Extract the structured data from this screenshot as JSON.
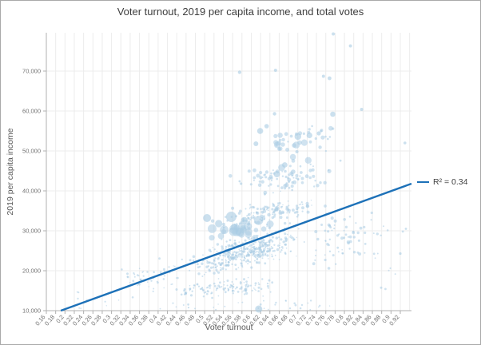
{
  "chart_data": {
    "type": "scatter",
    "title": "Voter turnout, 2019 per capita income, and total votes",
    "xlabel": "Voter turnout",
    "ylabel": "2019 per capita income",
    "legend_label": "R² = 0.34",
    "x_domain": [
      0.16,
      0.944
    ],
    "y_domain": [
      10000,
      79600
    ],
    "x_ticks": [
      "0.16",
      "0.18",
      "0.2",
      "0.22",
      "0.24",
      "0.26",
      "0.28",
      "0.3",
      "0.32",
      "0.34",
      "0.36",
      "0.38",
      "0.4",
      "0.42",
      "0.44",
      "0.46",
      "0.48",
      "0.5",
      "0.52",
      "0.54",
      "0.56",
      "0.58",
      "0.6",
      "0.62",
      "0.64",
      "0.66",
      "0.68",
      "0.7",
      "0.72",
      "0.74",
      "0.76",
      "0.78",
      "0.8",
      "0.82",
      "0.84",
      "0.86",
      "0.88",
      "0.9",
      "0.92"
    ],
    "extra_gridlines": [
      "0.94"
    ],
    "y_tick_values": [
      10000,
      20000,
      30000,
      40000,
      50000,
      60000,
      70000
    ],
    "y_tick_labels": [
      "10,000",
      "20,000",
      "30,000",
      "40,000",
      "50,000",
      "60,000",
      "70,000"
    ],
    "grid": true,
    "legend_position": "right",
    "trendline": {
      "x1": 0.191,
      "y1": 10000,
      "x2": 0.944,
      "y2": 41800,
      "r_squared": 0.34
    },
    "colors": {
      "point": "#a9cce3",
      "trend": "#1d71b8",
      "grid": "#ececec",
      "axis": "#b0b0b0",
      "tick_label": "#707070",
      "title": "#3d3d3d",
      "axis_title": "#595959",
      "legend_text": "#404040",
      "border": "#a9a9a9"
    },
    "seed": 1337,
    "highlight_points": [
      [
        0.776,
        79300,
        2
      ],
      [
        0.813,
        76300,
        2
      ],
      [
        0.575,
        69700,
        2.2
      ],
      [
        0.652,
        70200,
        2
      ],
      [
        0.755,
        68700,
        2
      ],
      [
        0.768,
        68200,
        2.4
      ],
      [
        0.65,
        59300,
        2.2
      ],
      [
        0.775,
        59200,
        3.3
      ],
      [
        0.837,
        60400,
        2
      ],
      [
        0.7,
        53600,
        4.2
      ],
      [
        0.725,
        53900,
        3.6
      ],
      [
        0.745,
        54400,
        2.6
      ],
      [
        0.619,
        55000,
        3.8
      ],
      [
        0.633,
        56200,
        2.8
      ],
      [
        0.61,
        51800,
        3
      ],
      [
        0.66,
        50500,
        2.4
      ],
      [
        0.698,
        49800,
        2
      ],
      [
        0.93,
        52000,
        1.8
      ],
      [
        0.505,
        33200,
        5
      ],
      [
        0.557,
        33500,
        6.5
      ],
      [
        0.53,
        31800,
        4.6
      ],
      [
        0.585,
        32600,
        4.2
      ],
      [
        0.616,
        10400,
        4.5
      ],
      [
        0.575,
        42400,
        1.4
      ],
      [
        0.578,
        41800,
        1.6
      ],
      [
        0.92,
        24300,
        1.6
      ],
      [
        0.932,
        30500,
        1.4
      ],
      [
        0.672,
        46500,
        3.4
      ],
      [
        0.655,
        44200,
        4
      ],
      [
        0.69,
        44800,
        2.8
      ]
    ],
    "point_clusters": [
      {
        "n": 400,
        "x": [
          0.44,
          0.745
        ],
        "y": [
          15500,
          34500
        ],
        "r": [
          0.7,
          1.8
        ],
        "dist": "gauss",
        "corr": 0.45
      },
      {
        "n": 150,
        "x": [
          0.5,
          0.78
        ],
        "y": [
          28000,
          41000
        ],
        "r": [
          0.7,
          2.2
        ],
        "dist": "gauss",
        "corr": 0.35
      },
      {
        "n": 130,
        "x": [
          0.4,
          0.7
        ],
        "y": [
          12000,
          19500
        ],
        "r": [
          0.7,
          1.6
        ],
        "dist": "gauss",
        "corr": 0.2
      },
      {
        "n": 50,
        "x": [
          0.3,
          0.47
        ],
        "y": [
          10800,
          26000
        ],
        "r": [
          0.7,
          1.5
        ],
        "dist": "gauss",
        "corr": 0.3
      },
      {
        "n": 9,
        "x": [
          0.21,
          0.33
        ],
        "y": [
          10200,
          15500
        ],
        "r": [
          0.7,
          1.2
        ],
        "dist": "uniform",
        "corr": 0
      },
      {
        "n": 65,
        "x": [
          0.71,
          0.88
        ],
        "y": [
          16500,
          38500
        ],
        "r": [
          0.8,
          2.0
        ],
        "dist": "gauss",
        "corr": 0.2
      },
      {
        "n": 14,
        "x": [
          0.86,
          0.94
        ],
        "y": [
          15000,
          32000
        ],
        "r": [
          0.8,
          1.7
        ],
        "dist": "uniform",
        "corr": 0
      },
      {
        "n": 80,
        "x": [
          0.55,
          0.83
        ],
        "y": [
          37000,
          50000
        ],
        "r": [
          0.9,
          2.6
        ],
        "dist": "gauss",
        "corr": 0.25
      },
      {
        "n": 30,
        "x": [
          0.58,
          0.84
        ],
        "y": [
          47000,
          60000
        ],
        "r": [
          1.2,
          3.0
        ],
        "dist": "gauss",
        "corr": 0.2
      },
      {
        "n": 24,
        "x": [
          0.49,
          0.68
        ],
        "y": [
          25500,
          35000
        ],
        "r": [
          2.8,
          6.0
        ],
        "dist": "gauss",
        "corr": 0.3
      },
      {
        "n": 10,
        "x": [
          0.6,
          0.77
        ],
        "y": [
          44000,
          56000
        ],
        "r": [
          2.2,
          4.6
        ],
        "dist": "gauss",
        "corr": 0
      },
      {
        "n": 34,
        "x": [
          0.4,
          0.78
        ],
        "y": [
          10200,
          12600
        ],
        "r": [
          0.7,
          1.4
        ],
        "dist": "uniform",
        "corr": 0
      }
    ]
  }
}
